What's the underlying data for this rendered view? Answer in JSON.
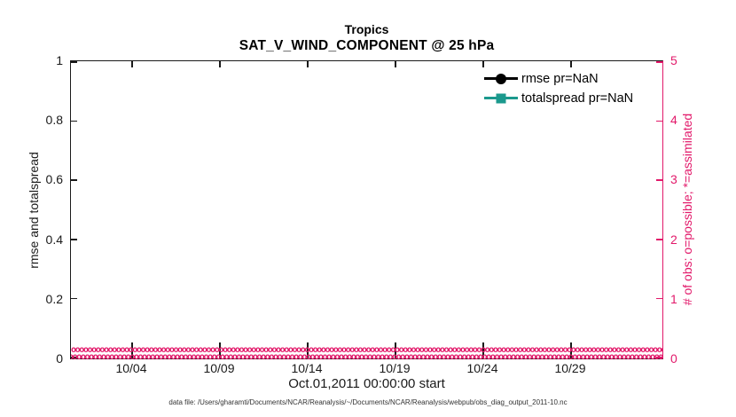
{
  "figure": {
    "title_line1": "Tropics",
    "title_line2": "SAT_V_WIND_COMPONENT @ 25 hPa",
    "xlabel": "Oct.01,2011 00:00:00 start",
    "left_axis": {
      "label": "rmse and totalspread",
      "ticks": [
        "1",
        "0.8",
        "0.6",
        "0.4",
        "0.2",
        "0"
      ]
    },
    "right_axis": {
      "label": "# of obs: o=possible; *=assimilated",
      "ticks": [
        "5",
        "4",
        "3",
        "2",
        "1",
        "0"
      ]
    },
    "x_axis": {
      "ticks": [
        "10/04",
        "10/09",
        "10/14",
        "10/19",
        "10/24",
        "10/29"
      ]
    },
    "legend": {
      "rmse_label": "rmse pr=NaN",
      "totalspread_label": "totalspread pr=NaN"
    },
    "footer": "data file: /Users/gharamti/Documents/NCAR/Reanalysis/~/Documents/NCAR/Reanalysis/webpub/obs_diag_output_2011-10.nc"
  },
  "colors": {
    "obs_pink": "#e2196a",
    "totalspread_teal": "#1b998d",
    "rmse_black": "#000000",
    "axis_dark": "#1a1a1a"
  },
  "obs_markers": {
    "char": "o",
    "count": 300
  },
  "chart_data": {
    "type": "line",
    "title": "Tropics",
    "subtitle": "SAT_V_WIND_COMPONENT @ 25 hPa",
    "xlabel": "Oct.01,2011 00:00:00 start",
    "ylabel_left": "rmse and totalspread",
    "ylabel_right": "# of obs: o=possible; *=assimilated",
    "ylim_left": [
      0,
      1
    ],
    "ylim_right": [
      0,
      5
    ],
    "x_tick_labels": [
      "10/04",
      "10/09",
      "10/14",
      "10/19",
      "10/24",
      "10/29"
    ],
    "x_range": "Oct 2011 (daily, 10/01 through 10/31)",
    "grid": false,
    "legend_position": "upper right, no box",
    "series": [
      {
        "name": "rmse pr=NaN",
        "axis": "left",
        "marker": "filled circle",
        "color": "#000000",
        "values": "NaN (no line plotted)"
      },
      {
        "name": "totalspread pr=NaN",
        "axis": "left",
        "marker": "filled square",
        "color": "#1b998d",
        "values": "NaN (no line plotted)"
      },
      {
        "name": "# of obs possible (o markers)",
        "axis": "right",
        "marker": "o",
        "color": "#e2196a",
        "constant_value": 0
      },
      {
        "name": "# of obs assimilated (* markers)",
        "axis": "right",
        "marker": "*",
        "color": "#e2196a",
        "constant_value": 0
      }
    ]
  }
}
